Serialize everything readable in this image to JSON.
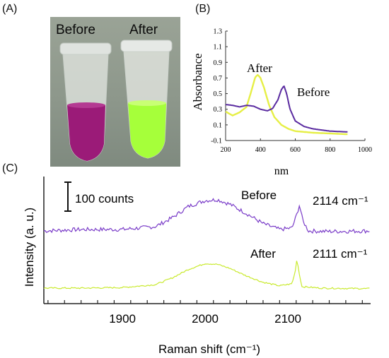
{
  "panels": {
    "a": "(A)",
    "b": "(B)",
    "c": "(C)"
  },
  "photo": {
    "before_label": "Before",
    "after_label": "After",
    "tube_before_color": "#9b1b78",
    "tube_after_color": "#a6ff3a"
  },
  "chart_data": [
    {
      "type": "line",
      "panel": "B",
      "xlabel": "nm",
      "ylabel": "Absorbance",
      "xlim": [
        200,
        1000
      ],
      "ylim": [
        -0.1,
        1.3
      ],
      "xticks": [
        "200",
        "400",
        "600",
        "800",
        "1000"
      ],
      "yticks": [
        "-0.1",
        "0.1",
        "0.3",
        "0.5",
        "0.7",
        "0.9",
        "1.1",
        "1.3"
      ],
      "series": [
        {
          "name": "After",
          "color": "#e6ef45",
          "x": [
            200,
            240,
            280,
            320,
            350,
            370,
            385,
            400,
            420,
            450,
            480,
            520,
            560,
            600,
            700,
            800,
            900
          ],
          "y": [
            0.27,
            0.22,
            0.26,
            0.33,
            0.55,
            0.71,
            0.74,
            0.7,
            0.58,
            0.35,
            0.2,
            0.1,
            0.05,
            0.02,
            0.0,
            -0.01,
            -0.02
          ]
        },
        {
          "name": "Before",
          "color": "#5a2ba0",
          "x": [
            200,
            240,
            280,
            320,
            360,
            400,
            440,
            470,
            500,
            520,
            535,
            550,
            570,
            600,
            650,
            700,
            800,
            900
          ],
          "y": [
            0.36,
            0.35,
            0.33,
            0.35,
            0.34,
            0.3,
            0.28,
            0.31,
            0.42,
            0.55,
            0.6,
            0.5,
            0.3,
            0.15,
            0.08,
            0.05,
            0.02,
            0.01
          ]
        }
      ]
    },
    {
      "type": "line",
      "panel": "C",
      "xlabel": "Raman shift (cm⁻¹)",
      "ylabel": "Intensity (a. u.)",
      "xlim": [
        1805,
        2200
      ],
      "xticks": [
        "1900",
        "2000",
        "2100"
      ],
      "scale_bar": "100 counts",
      "series": [
        {
          "name": "Before",
          "color": "#7a3cc8",
          "peak_label": "2114 cm⁻¹",
          "x": [
            1805,
            1850,
            1900,
            1940,
            1960,
            1980,
            2000,
            2015,
            2030,
            2050,
            2070,
            2090,
            2105,
            2110,
            2114,
            2118,
            2125,
            2150,
            2200
          ],
          "y": [
            100,
            105,
            105,
            115,
            145,
            185,
            205,
            208,
            192,
            160,
            125,
            105,
            110,
            150,
            190,
            135,
            100,
            98,
            100
          ]
        },
        {
          "name": "After",
          "color": "#c9ea2e",
          "peak_label": "2111 cm⁻¹",
          "x": [
            1805,
            1850,
            1900,
            1940,
            1960,
            1980,
            2000,
            2015,
            2030,
            2050,
            2070,
            2090,
            2105,
            2109,
            2111,
            2113,
            2117,
            2140,
            2200
          ],
          "y": [
            10,
            10,
            12,
            22,
            45,
            75,
            95,
            92,
            78,
            52,
            30,
            18,
            25,
            70,
            115,
            70,
            15,
            10,
            8
          ]
        }
      ]
    }
  ]
}
